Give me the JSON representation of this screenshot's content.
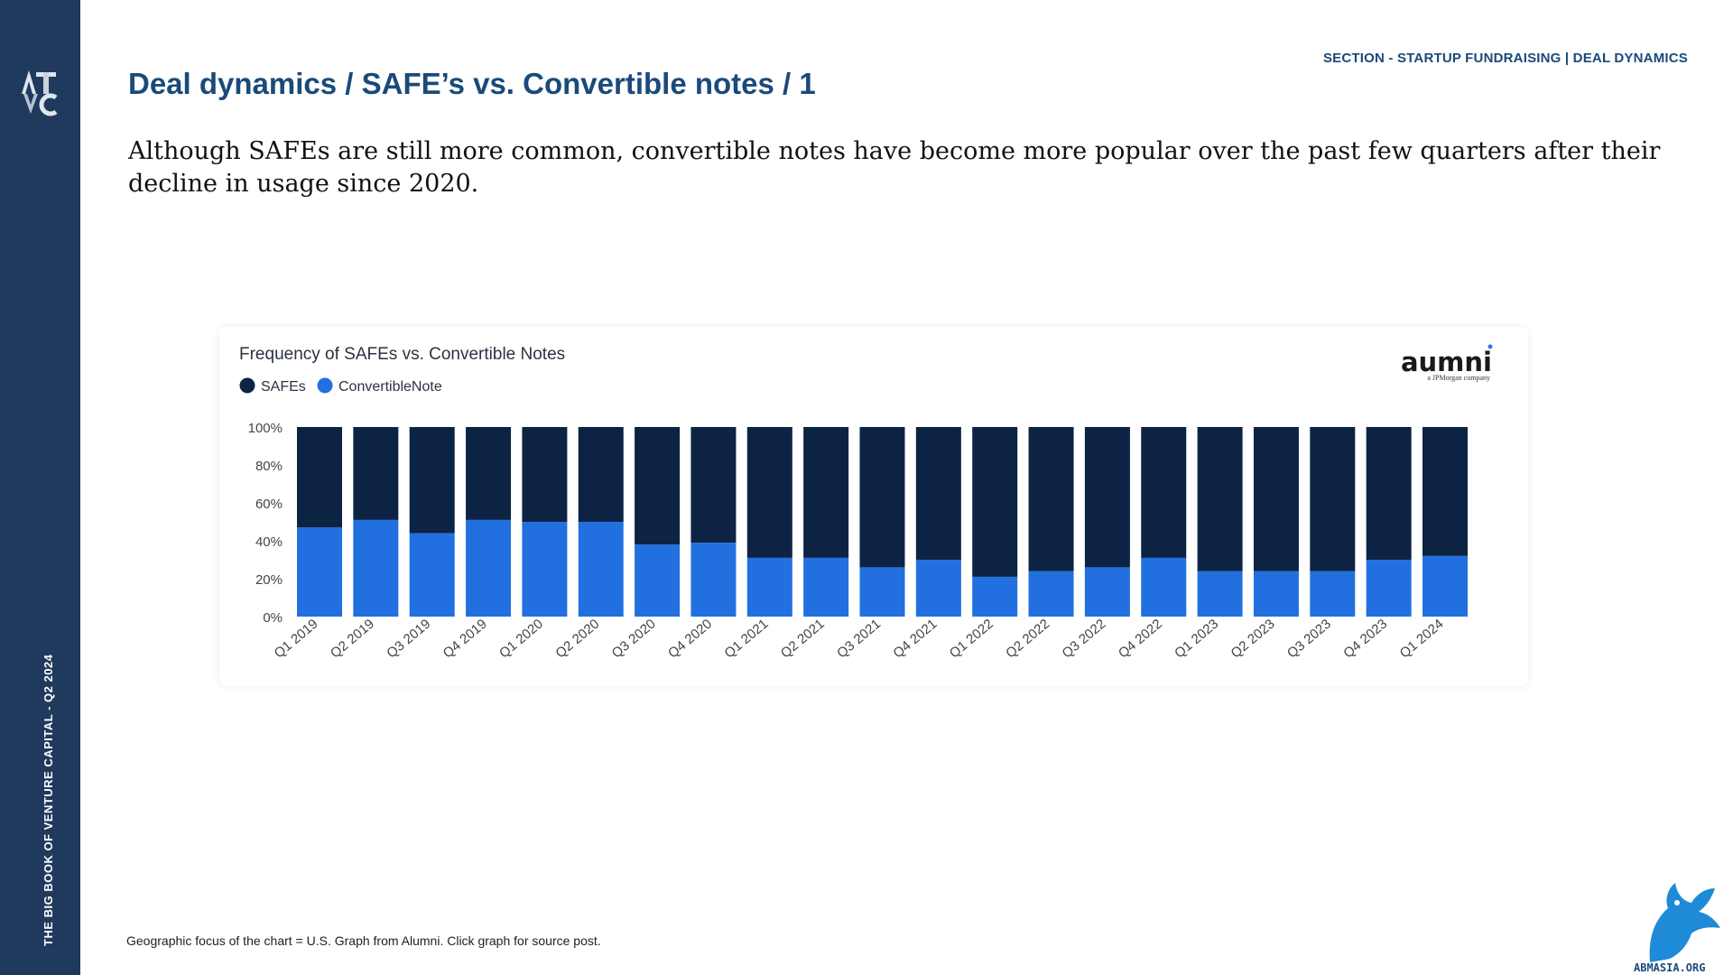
{
  "sidebar": {
    "logo_text": "ATVC",
    "vertical_text": "THE BIG BOOK OF VENTURE CAPITAL - Q2 2024"
  },
  "header": {
    "section_label": "SECTION - STARTUP FUNDRAISING | DEAL DYNAMICS",
    "title": "Deal dynamics / SAFE’s vs. Convertible notes / 1"
  },
  "intro": "Although SAFEs are still more common, convertible notes have become more popular over the past few quarters after their decline in usage since 2020.",
  "footnote": "Geographic focus of the chart = U.S. Graph from Alumni. Click graph for source post.",
  "watermark": {
    "text": "ABMASIA.ORG"
  },
  "brand": {
    "name": "aumni",
    "tagline": "a JPMorgan company"
  },
  "colors": {
    "sidebar": "#1f3a5c",
    "heading": "#1a4a7a",
    "safes": "#0d2344",
    "convertible": "#2270e0",
    "brand_dot": "#2e7be0"
  },
  "chart_data": {
    "type": "bar",
    "stacked": true,
    "title": "Frequency of SAFEs vs. Convertible Notes",
    "legend_position": "top-left",
    "categories": [
      "Q1 2019",
      "Q2 2019",
      "Q3 2019",
      "Q4 2019",
      "Q1 2020",
      "Q2 2020",
      "Q3 2020",
      "Q4 2020",
      "Q1 2021",
      "Q2 2021",
      "Q3 2021",
      "Q4 2021",
      "Q1 2022",
      "Q2 2022",
      "Q3 2022",
      "Q4 2022",
      "Q1 2023",
      "Q2 2023",
      "Q3 2023",
      "Q4 2023",
      "Q1 2024"
    ],
    "series": [
      {
        "name": "SAFEs",
        "color": "#0d2344",
        "values": [
          53,
          49,
          56,
          49,
          50,
          50,
          62,
          61,
          69,
          69,
          74,
          70,
          79,
          76,
          74,
          69,
          76,
          76,
          76,
          70,
          68
        ]
      },
      {
        "name": "ConvertibleNote",
        "color": "#2270e0",
        "values": [
          47,
          51,
          44,
          51,
          50,
          50,
          38,
          39,
          31,
          31,
          26,
          30,
          21,
          24,
          26,
          31,
          24,
          24,
          24,
          30,
          32
        ]
      }
    ],
    "ylim": [
      0,
      100
    ],
    "yticks": [
      "0%",
      "20%",
      "40%",
      "60%",
      "80%",
      "100%"
    ],
    "grid": false
  }
}
